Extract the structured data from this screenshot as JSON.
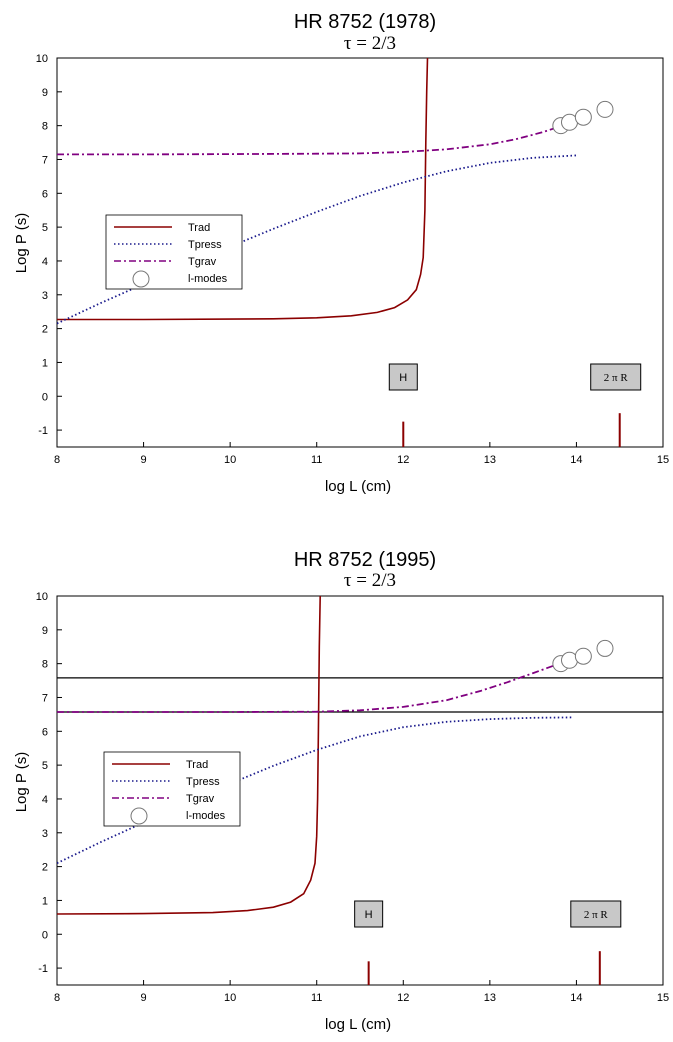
{
  "chart_data": [
    {
      "type": "line",
      "title": "HR 8752   (1978)",
      "subtitle": "τ  = 2/3",
      "xlabel": "log L (cm)",
      "ylabel": "Log P (s)",
      "xlim": [
        8,
        15
      ],
      "ylim": [
        -1.5,
        10
      ],
      "xticks": [
        "8",
        "9",
        "10",
        "11",
        "12",
        "13",
        "14",
        "15"
      ],
      "yticks": [
        "-1",
        "0",
        "1",
        "2",
        "3",
        "4",
        "5",
        "6",
        "7",
        "8",
        "9",
        "10"
      ],
      "grid": false,
      "legend_position": "middle-left",
      "series": [
        {
          "name": "Trad",
          "color": "#8b0000",
          "style": "solid",
          "x": [
            8.0,
            9.0,
            10.0,
            10.5,
            11.0,
            11.4,
            11.7,
            11.9,
            12.05,
            12.15,
            12.2,
            12.23,
            12.25,
            12.26,
            12.27,
            12.28
          ],
          "y": [
            2.27,
            2.27,
            2.28,
            2.29,
            2.32,
            2.38,
            2.48,
            2.62,
            2.85,
            3.15,
            3.6,
            4.1,
            5.5,
            7.5,
            9.0,
            10.0
          ]
        },
        {
          "name": "Tpress",
          "color": "#1a1a8c",
          "style": "dotted",
          "x": [
            8.0,
            8.5,
            9.0,
            9.5,
            10.0,
            10.5,
            11.0,
            11.5,
            12.0,
            12.5,
            13.0,
            13.5,
            14.0
          ],
          "y": [
            2.15,
            2.75,
            3.32,
            3.88,
            4.42,
            4.95,
            5.45,
            5.92,
            6.32,
            6.65,
            6.9,
            7.05,
            7.12
          ]
        },
        {
          "name": "Tgrav",
          "color": "#800080",
          "style": "dash-dot",
          "x": [
            8.0,
            9.0,
            10.0,
            11.0,
            11.5,
            12.0,
            12.5,
            13.0,
            13.3,
            13.6,
            13.9
          ],
          "y": [
            7.15,
            7.15,
            7.16,
            7.17,
            7.18,
            7.22,
            7.3,
            7.45,
            7.6,
            7.8,
            8.05
          ]
        },
        {
          "name": "l-modes",
          "color": "#ffffff",
          "style": "markers",
          "x": [
            13.82,
            13.92,
            14.08,
            14.33
          ],
          "y": [
            8.0,
            8.1,
            8.25,
            8.48
          ]
        }
      ],
      "annotations": [
        {
          "label": "H",
          "x": 12.0,
          "marker_from": -1.5,
          "marker_to": -0.75
        },
        {
          "label": "2 π R",
          "x": 14.5,
          "marker_from": -1.5,
          "marker_to": -0.5
        }
      ],
      "hlines": []
    },
    {
      "type": "line",
      "title": "HR 8752   (1995)",
      "subtitle": "τ  = 2/3",
      "xlabel": "log L (cm)",
      "ylabel": "Log P (s)",
      "xlim": [
        8,
        15
      ],
      "ylim": [
        -1.5,
        10
      ],
      "xticks": [
        "8",
        "9",
        "10",
        "11",
        "12",
        "13",
        "14",
        "15"
      ],
      "yticks": [
        "-1",
        "0",
        "1",
        "2",
        "3",
        "4",
        "5",
        "6",
        "7",
        "8",
        "9",
        "10"
      ],
      "grid": false,
      "legend_position": "middle-left",
      "series": [
        {
          "name": "Trad",
          "color": "#8b0000",
          "style": "solid",
          "x": [
            8.0,
            9.0,
            9.8,
            10.2,
            10.5,
            10.7,
            10.85,
            10.93,
            10.98,
            11.0,
            11.01,
            11.02,
            11.03,
            11.04
          ],
          "y": [
            0.6,
            0.61,
            0.64,
            0.7,
            0.8,
            0.95,
            1.2,
            1.6,
            2.1,
            2.9,
            4.0,
            6.0,
            8.5,
            10.0
          ]
        },
        {
          "name": "Tpress",
          "color": "#1a1a8c",
          "style": "dotted",
          "x": [
            8.0,
            8.5,
            9.0,
            9.5,
            10.0,
            10.5,
            11.0,
            11.5,
            12.0,
            12.5,
            13.0,
            13.5,
            13.95
          ],
          "y": [
            2.1,
            2.72,
            3.3,
            3.88,
            4.45,
            4.98,
            5.45,
            5.85,
            6.12,
            6.28,
            6.36,
            6.4,
            6.41
          ]
        },
        {
          "name": "Tgrav",
          "color": "#800080",
          "style": "dash-dot",
          "x": [
            8.0,
            9.0,
            10.0,
            11.0,
            11.5,
            12.0,
            12.5,
            12.9,
            13.2,
            13.5,
            13.8
          ],
          "y": [
            6.57,
            6.57,
            6.57,
            6.58,
            6.62,
            6.72,
            6.92,
            7.2,
            7.45,
            7.72,
            8.0
          ]
        },
        {
          "name": "l-modes",
          "color": "#ffffff",
          "style": "markers",
          "x": [
            13.82,
            13.92,
            14.08,
            14.33
          ],
          "y": [
            8.0,
            8.1,
            8.22,
            8.45
          ]
        }
      ],
      "annotations": [
        {
          "label": "H",
          "x": 11.6,
          "marker_from": -1.5,
          "marker_to": -0.8
        },
        {
          "label": "2 π R",
          "x": 14.27,
          "marker_from": -1.5,
          "marker_to": -0.5
        }
      ],
      "hlines": [
        7.58,
        6.57
      ]
    }
  ]
}
